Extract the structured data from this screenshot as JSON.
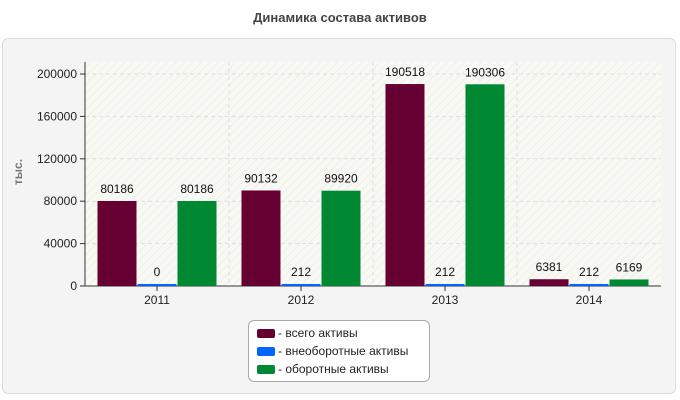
{
  "chart_data": {
    "type": "bar",
    "title": "Динамика состава активов",
    "ylabel": "тыс.",
    "xlabel": "",
    "categories": [
      "2011",
      "2012",
      "2013",
      "2014"
    ],
    "series": [
      {
        "name": "- всего активы",
        "values": [
          80186,
          90132,
          190518,
          6381
        ],
        "color": "#660033"
      },
      {
        "name": "- внеоборотные активы",
        "values": [
          0,
          212,
          212,
          212
        ],
        "color": "#0066ff"
      },
      {
        "name": "- оборотные активы",
        "values": [
          80186,
          89920,
          190306,
          6169
        ],
        "color": "#008833"
      }
    ],
    "ylim": [
      0,
      200000
    ],
    "yticks": [
      0,
      40000,
      80000,
      120000,
      160000,
      200000
    ],
    "grid": true,
    "legend_position": "bottom-center"
  }
}
